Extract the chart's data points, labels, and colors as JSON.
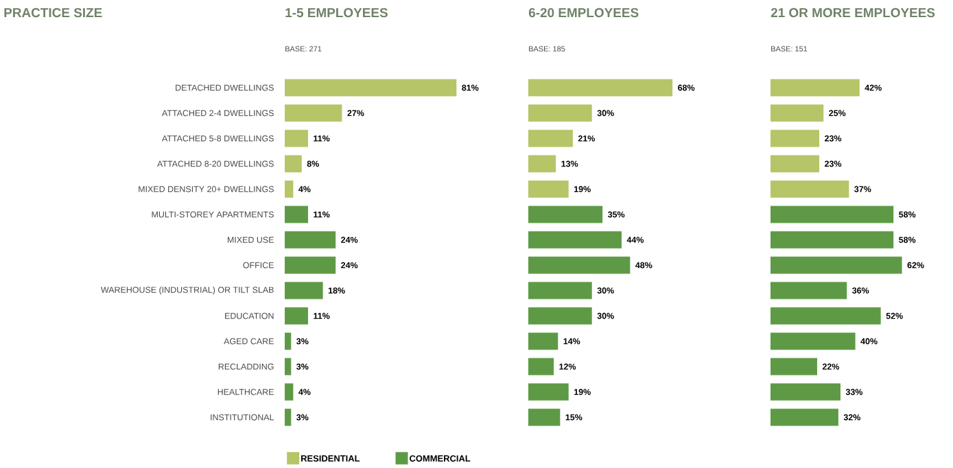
{
  "chart_data": [
    {
      "type": "bar",
      "orientation": "horizontal",
      "title": "1-5 EMPLOYEES",
      "subtitle": "BASE: 271",
      "annotations": [
        "PRACTICE SIZE"
      ],
      "tick_labels": "y",
      "legend": "bottom",
      "categories": [
        "DETACHED DWELLINGS",
        "ATTACHED 2-4 DWELLINGS",
        "ATTACHED 5-8 DWELLINGS",
        "ATTACHED 8-20 DWELLINGS",
        "MIXED DENSITY 20+ DWELLINGS",
        "MULTI-STOREY APARTMENTS",
        "MIXED USE",
        "OFFICE",
        "WAREHOUSE (INDUSTRIAL) OR TILT SLAB",
        "EDUCATION",
        "AGED CARE",
        "RECLADDING",
        "HEALTHCARE",
        "INSTITUTIONAL"
      ],
      "series": [
        {
          "name": "RESIDENTIAL",
          "color": "#b5c567",
          "values": [
            81,
            27,
            11,
            8,
            4,
            null,
            null,
            null,
            null,
            null,
            null,
            null,
            null,
            null
          ],
          "value_labels": [
            "81%",
            "27%",
            "11%",
            "8%",
            "4%",
            null,
            null,
            null,
            null,
            null,
            null,
            null,
            null,
            null
          ]
        },
        {
          "name": "COMMERCIAL",
          "color": "#5e9a45",
          "values": [
            null,
            null,
            null,
            null,
            null,
            11,
            24,
            24,
            18,
            11,
            3,
            3,
            4,
            3
          ],
          "value_labels": [
            null,
            null,
            null,
            null,
            null,
            "11%",
            "24%",
            "24%",
            "18%",
            "11%",
            "3%",
            "3%",
            "4%",
            "3%"
          ]
        }
      ]
    },
    {
      "type": "bar",
      "orientation": "horizontal",
      "title": "6-20 EMPLOYEES",
      "subtitle": "BASE: 185",
      "tick_labels": false,
      "categories": [
        null,
        null,
        null,
        null,
        null,
        null,
        null,
        null,
        null,
        null,
        null,
        null,
        null,
        null
      ],
      "series": [
        {
          "color": "#b5c567",
          "values": [
            68,
            30,
            21,
            13,
            19,
            null,
            null,
            null,
            null,
            null,
            null,
            null,
            null,
            null
          ],
          "value_labels": [
            "68%",
            "30%",
            "21%",
            "13%",
            "19%",
            null,
            null,
            null,
            null,
            null,
            null,
            null,
            null,
            null
          ]
        },
        {
          "color": "#5e9a45",
          "values": [
            null,
            null,
            null,
            null,
            null,
            35,
            44,
            48,
            30,
            30,
            14,
            12,
            19,
            15
          ],
          "value_labels": [
            null,
            null,
            null,
            null,
            null,
            "35%",
            "44%",
            "48%",
            "30%",
            "30%",
            "14%",
            "12%",
            "19%",
            "15%"
          ]
        }
      ]
    },
    {
      "type": "bar",
      "orientation": "horizontal",
      "title": "21 OR MORE EMPLOYEES",
      "subtitle": "BASE: 151",
      "tick_labels": false,
      "categories": [
        null,
        null,
        null,
        null,
        null,
        null,
        null,
        null,
        null,
        null,
        null,
        null,
        null,
        null
      ],
      "series": [
        {
          "color": "#b5c567",
          "values": [
            42,
            25,
            23,
            23,
            37,
            null,
            null,
            null,
            null,
            null,
            null,
            null,
            null,
            null
          ],
          "value_labels": [
            "42%",
            "25%",
            "23%",
            "23%",
            "37%",
            null,
            null,
            null,
            null,
            null,
            null,
            null,
            null,
            null
          ]
        },
        {
          "color": "#5e9a45",
          "values": [
            null,
            null,
            null,
            null,
            null,
            58,
            58,
            62,
            36,
            52,
            40,
            22,
            33,
            32
          ],
          "value_labels": [
            null,
            null,
            null,
            null,
            null,
            "58%",
            "58%",
            "62%",
            "36%",
            "52%",
            "40%",
            "22%",
            "33%",
            "32%"
          ]
        }
      ]
    }
  ]
}
